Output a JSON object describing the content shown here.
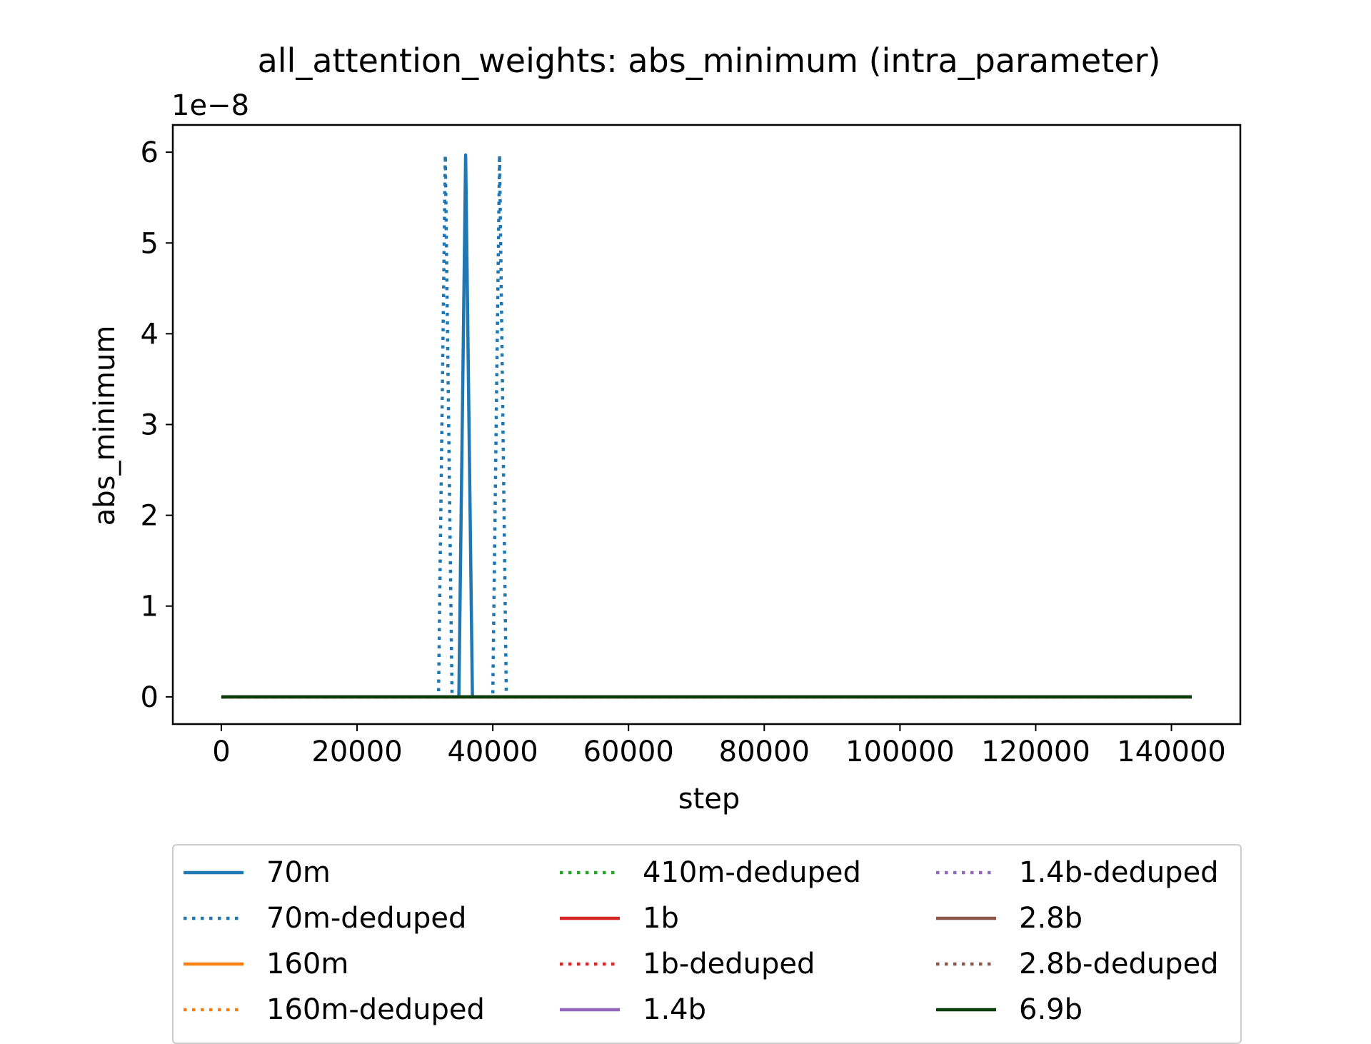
{
  "chart_data": {
    "type": "line",
    "title": "all_attention_weights: abs_minimum (intra_parameter)",
    "xlabel": "step",
    "ylabel": "abs_minimum",
    "offset_text": "1e−8",
    "xlim": [
      -7150,
      150150
    ],
    "ylim": [
      -0.3,
      6.3
    ],
    "x_ticks": [
      0,
      20000,
      40000,
      60000,
      80000,
      100000,
      120000,
      140000
    ],
    "x_tick_labels": [
      "0",
      "20000",
      "40000",
      "60000",
      "80000",
      "100000",
      "120000",
      "140000"
    ],
    "y_ticks": [
      0,
      1,
      2,
      3,
      4,
      5,
      6
    ],
    "y_tick_labels": [
      "0",
      "1",
      "2",
      "3",
      "4",
      "5",
      "6"
    ],
    "grid": false,
    "legend_placement": "bottom-outside",
    "series": [
      {
        "name": "70m",
        "color": "#1f77b4",
        "style": "solid",
        "x": [
          0,
          35000,
          36000,
          37000,
          143000
        ],
        "y": [
          0,
          0,
          5.97,
          0,
          0
        ]
      },
      {
        "name": "70m-deduped",
        "color": "#1f77b4",
        "style": "dotted",
        "x": [
          0,
          32000,
          33000,
          34000,
          40000,
          41000,
          42000,
          143000
        ],
        "y": [
          0,
          0,
          5.97,
          0,
          0,
          5.97,
          0,
          0
        ]
      },
      {
        "name": "160m",
        "color": "#ff7f0e",
        "style": "solid",
        "x": [
          0,
          143000
        ],
        "y": [
          0,
          0
        ]
      },
      {
        "name": "160m-deduped",
        "color": "#ff7f0e",
        "style": "dotted",
        "x": [
          0,
          143000
        ],
        "y": [
          0,
          0
        ]
      },
      {
        "name": "410m-deduped",
        "color": "#2ca02c",
        "style": "dotted",
        "x": [
          0,
          143000
        ],
        "y": [
          0,
          0
        ]
      },
      {
        "name": "1b",
        "color": "#d62728",
        "style": "solid",
        "x": [
          0,
          143000
        ],
        "y": [
          0,
          0
        ]
      },
      {
        "name": "1b-deduped",
        "color": "#d62728",
        "style": "dotted",
        "x": [
          0,
          143000
        ],
        "y": [
          0,
          0
        ]
      },
      {
        "name": "1.4b",
        "color": "#9467bd",
        "style": "solid",
        "x": [
          0,
          143000
        ],
        "y": [
          0,
          0
        ]
      },
      {
        "name": "1.4b-deduped",
        "color": "#9467bd",
        "style": "dotted",
        "x": [
          0,
          143000
        ],
        "y": [
          0,
          0
        ]
      },
      {
        "name": "2.8b",
        "color": "#8c564b",
        "style": "solid",
        "x": [
          0,
          143000
        ],
        "y": [
          0,
          0
        ]
      },
      {
        "name": "2.8b-deduped",
        "color": "#8c564b",
        "style": "dotted",
        "x": [
          0,
          143000
        ],
        "y": [
          0,
          0
        ]
      },
      {
        "name": "6.9b",
        "color": "#0b3d0b",
        "style": "solid",
        "x": [
          0,
          143000
        ],
        "y": [
          0,
          0
        ]
      }
    ]
  }
}
